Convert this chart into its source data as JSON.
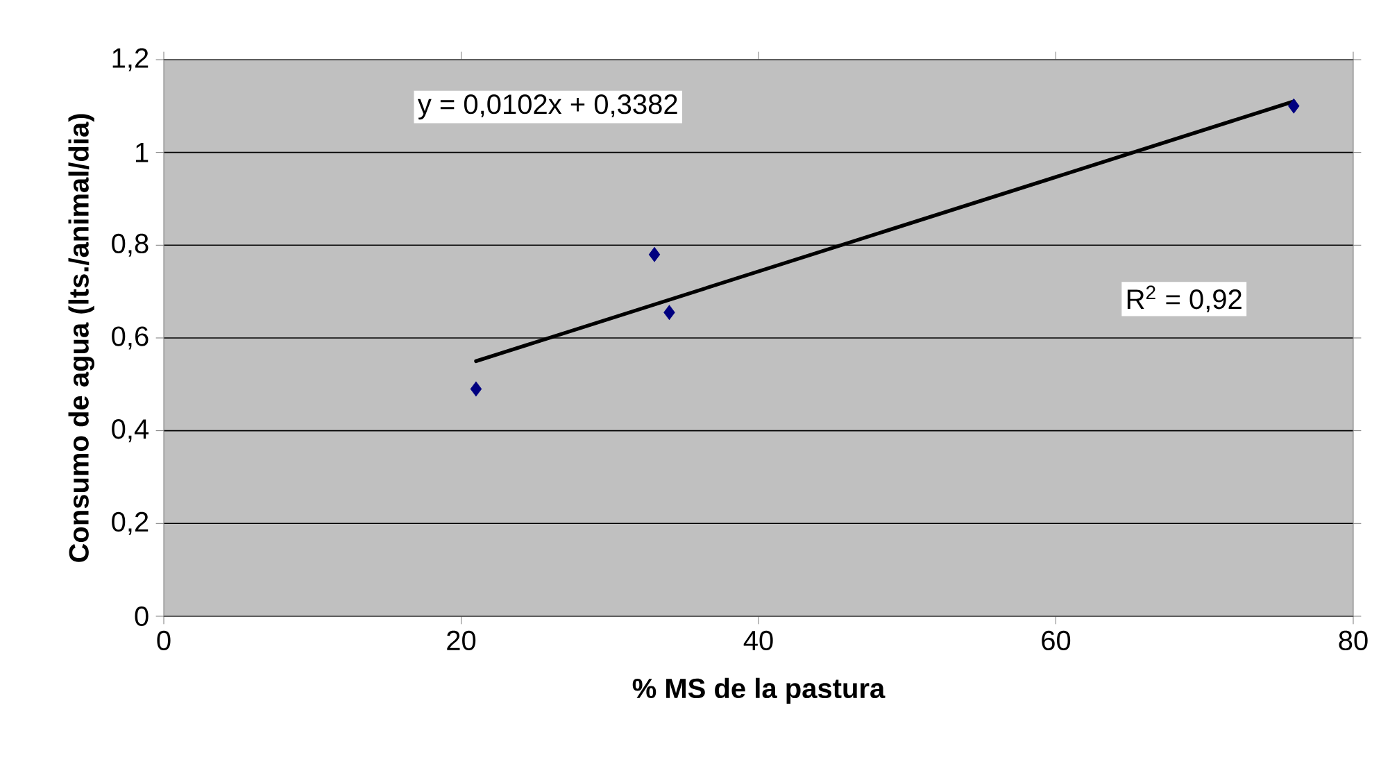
{
  "chart_data": {
    "type": "scatter",
    "xlabel": "% MS de la pastura",
    "ylabel": "Consumo de agua (lts./animal/dia)",
    "xlim": [
      0,
      80
    ],
    "xticks": [
      0,
      20,
      40,
      60,
      80
    ],
    "ylim": [
      0,
      1.2
    ],
    "yticks": [
      {
        "value": 0,
        "label": "0"
      },
      {
        "value": 0.2,
        "label": "0,2"
      },
      {
        "value": 0.4,
        "label": "0,4"
      },
      {
        "value": 0.6,
        "label": "0,6"
      },
      {
        "value": 0.8,
        "label": "0,8"
      },
      {
        "value": 1,
        "label": "1"
      },
      {
        "value": 1.2,
        "label": "1,2"
      }
    ],
    "grid": "y",
    "series": [
      {
        "color": "#000080",
        "marker": "diamond",
        "x": [
          21,
          33,
          34,
          76
        ],
        "values": [
          0.49,
          0.78,
          0.655,
          1.1
        ]
      },
      {
        "type": "line",
        "color": "#000000",
        "marker": "none",
        "line_style": "solid",
        "x": [
          21,
          76
        ],
        "values": [
          0.55,
          1.11
        ]
      }
    ],
    "annotations": [
      "y = 0,0102x + 0,3382",
      "R$^{2}$ = 0,92"
    ]
  }
}
